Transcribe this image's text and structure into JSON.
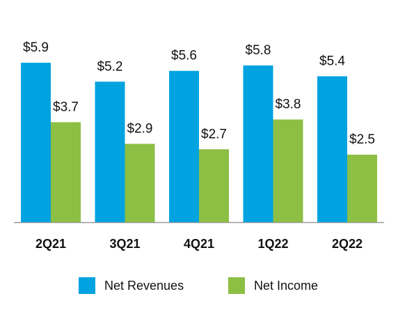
{
  "chart_data": {
    "type": "bar",
    "categories": [
      "2Q21",
      "3Q21",
      "4Q21",
      "1Q22",
      "2Q22"
    ],
    "series": [
      {
        "name": "Net Revenues",
        "color": "#00a3e0",
        "values": [
          5.9,
          5.2,
          5.6,
          5.8,
          5.4
        ],
        "value_labels": [
          "$5.9",
          "$5.2",
          "$5.6",
          "$5.8",
          "$5.4"
        ]
      },
      {
        "name": "Net Income",
        "color": "#8cbf44",
        "values": [
          3.7,
          2.9,
          2.7,
          3.8,
          2.5
        ],
        "value_labels": [
          "$3.7",
          "$2.9",
          "$2.7",
          "$3.8",
          "$2.5"
        ]
      }
    ],
    "legend": "bottom"
  }
}
